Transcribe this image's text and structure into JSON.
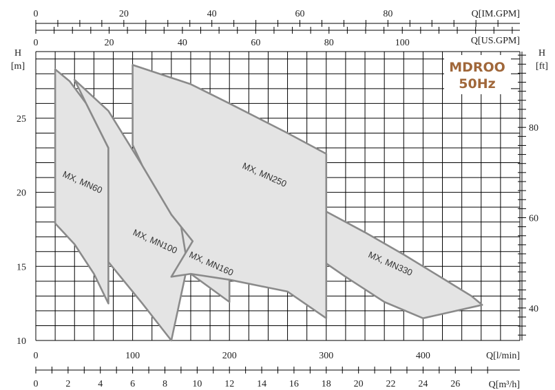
{
  "chart_data": {
    "type": "area",
    "model": "MDROO",
    "frequency": "50Hz",
    "axes": {
      "x_lmin": {
        "label": "Q[l/min]",
        "range": [
          0,
          500
        ],
        "ticks": [
          "0",
          "100",
          "200",
          "300",
          "400"
        ]
      },
      "x_m3h": {
        "label": "Q[m³/h]",
        "range": [
          0,
          30
        ],
        "ticks": [
          "0",
          "2",
          "4",
          "6",
          "8",
          "10",
          "12",
          "14",
          "16",
          "18",
          "20",
          "22",
          "24",
          "26"
        ]
      },
      "x_usgpm": {
        "label": "Q[US.GPM]",
        "range": [
          0,
          132
        ],
        "ticks": [
          "0",
          "20",
          "40",
          "60",
          "80",
          "100"
        ]
      },
      "x_imgpm": {
        "label": "Q[IM.GPM]",
        "range": [
          0,
          110
        ],
        "ticks": [
          "0",
          "20",
          "40",
          "60",
          "80"
        ]
      },
      "y_m": {
        "label_top": "H",
        "label_unit": "[m]",
        "range": [
          10,
          29.5
        ],
        "ticks": [
          "10",
          "15",
          "20",
          "25"
        ]
      },
      "y_ft": {
        "label_top": "H",
        "label_unit": "[ft]",
        "range": [
          32.8,
          96.8
        ],
        "ticks": [
          "40",
          "60",
          "80"
        ]
      }
    },
    "grid": true,
    "series": [
      {
        "name": "MX, MN60",
        "label_pos": [
          47,
          20.5
        ],
        "label_rot": 24,
        "outline": [
          [
            20,
            28.3
          ],
          [
            35,
            27.5
          ],
          [
            52,
            26.0
          ],
          [
            75,
            23.0
          ],
          [
            75,
            12.5
          ],
          [
            60,
            14.5
          ],
          [
            40,
            16.5
          ],
          [
            20,
            17.9
          ]
        ]
      },
      {
        "name": "MX, MN100",
        "label_pos": [
          122,
          16.5
        ],
        "label_rot": 24,
        "outline": [
          [
            40,
            27.6
          ],
          [
            75,
            25.5
          ],
          [
            110,
            21.8
          ],
          [
            140,
            18.5
          ],
          [
            162,
            16.7
          ],
          [
            140,
            10.0
          ],
          [
            110,
            12.5
          ],
          [
            75,
            15.3
          ],
          [
            75,
            23.0
          ],
          [
            52,
            26.0
          ]
        ]
      },
      {
        "name": "MX, MN160",
        "label_pos": [
          180,
          15.0
        ],
        "label_rot": 24,
        "outline": [
          [
            148,
            18.5
          ],
          [
            200,
            16.6
          ],
          [
            200,
            12.6
          ],
          [
            158,
            14.6
          ]
        ]
      },
      {
        "name": "MX, MN250",
        "label_pos": [
          235,
          21.0
        ],
        "label_rot": 24,
        "outline": [
          [
            100,
            28.6
          ],
          [
            160,
            27.3
          ],
          [
            200,
            26.0
          ],
          [
            260,
            24.0
          ],
          [
            300,
            22.6
          ],
          [
            300,
            11.5
          ],
          [
            260,
            13.3
          ],
          [
            200,
            14.1
          ],
          [
            160,
            14.5
          ],
          [
            140,
            14.3
          ],
          [
            162,
            16.7
          ],
          [
            140,
            18.5
          ],
          [
            110,
            21.8
          ],
          [
            100,
            23.2
          ]
        ]
      },
      {
        "name": "MX, MN330",
        "label_pos": [
          365,
          15.0
        ],
        "label_rot": 24,
        "outline": [
          [
            300,
            18.7
          ],
          [
            340,
            17.3
          ],
          [
            380,
            15.8
          ],
          [
            420,
            14.2
          ],
          [
            450,
            13.0
          ],
          [
            461,
            12.4
          ],
          [
            400,
            11.5
          ],
          [
            360,
            12.6
          ],
          [
            320,
            14.3
          ],
          [
            300,
            15.2
          ]
        ]
      }
    ]
  }
}
